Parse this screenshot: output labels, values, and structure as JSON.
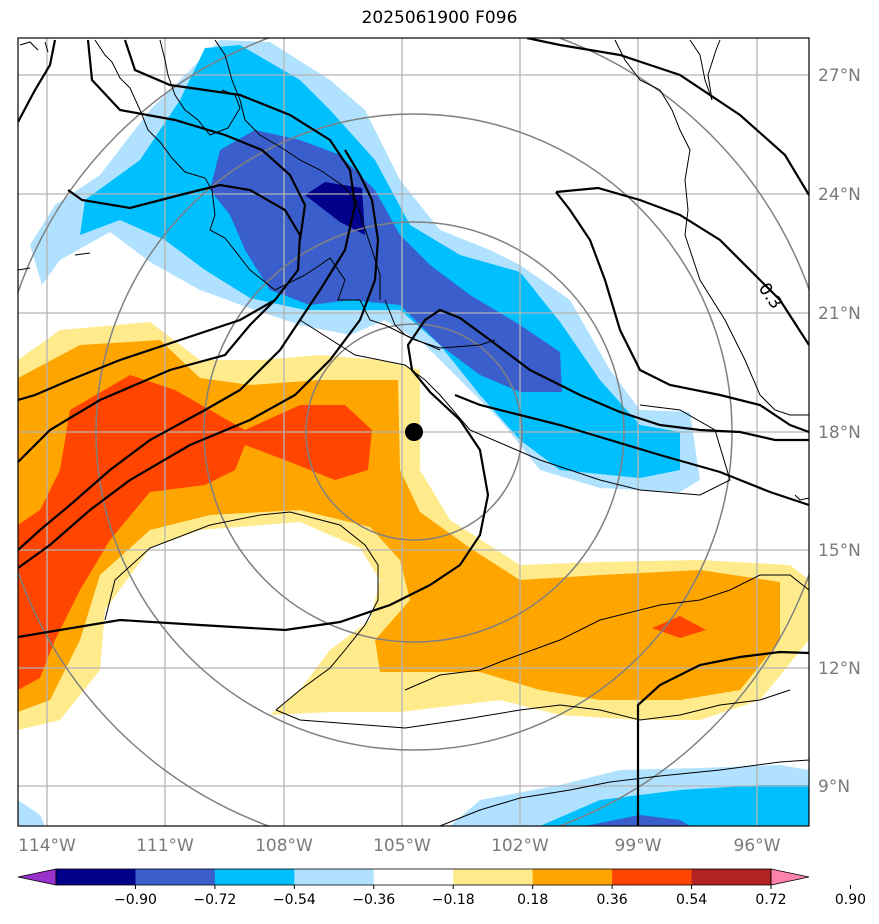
{
  "title": "2025061900 F096",
  "contour_label": "0.3",
  "lon_labels": [
    "114°W",
    "111°W",
    "108°W",
    "105°W",
    "102°W",
    "99°W",
    "96°W"
  ],
  "lat_labels": [
    "27°N",
    "24°N",
    "21°N",
    "18°N",
    "15°N",
    "12°N",
    "9°N"
  ],
  "colorbar": {
    "ticks": [
      "−0.90",
      "−0.72",
      "−0.54",
      "−0.36",
      "−0.18",
      "0.18",
      "0.36",
      "0.54",
      "0.72",
      "0.90"
    ],
    "colors": [
      "#9932cc",
      "#00008b",
      "#3a5fcd",
      "#00bfff",
      "#b0e2ff",
      "#ffffff",
      "#ffeb8b",
      "#ffa500",
      "#ff4500",
      "#b22222",
      "#ff82ab"
    ]
  },
  "storm_center": {
    "lon": "104.7W",
    "lat": "18.0N"
  }
}
